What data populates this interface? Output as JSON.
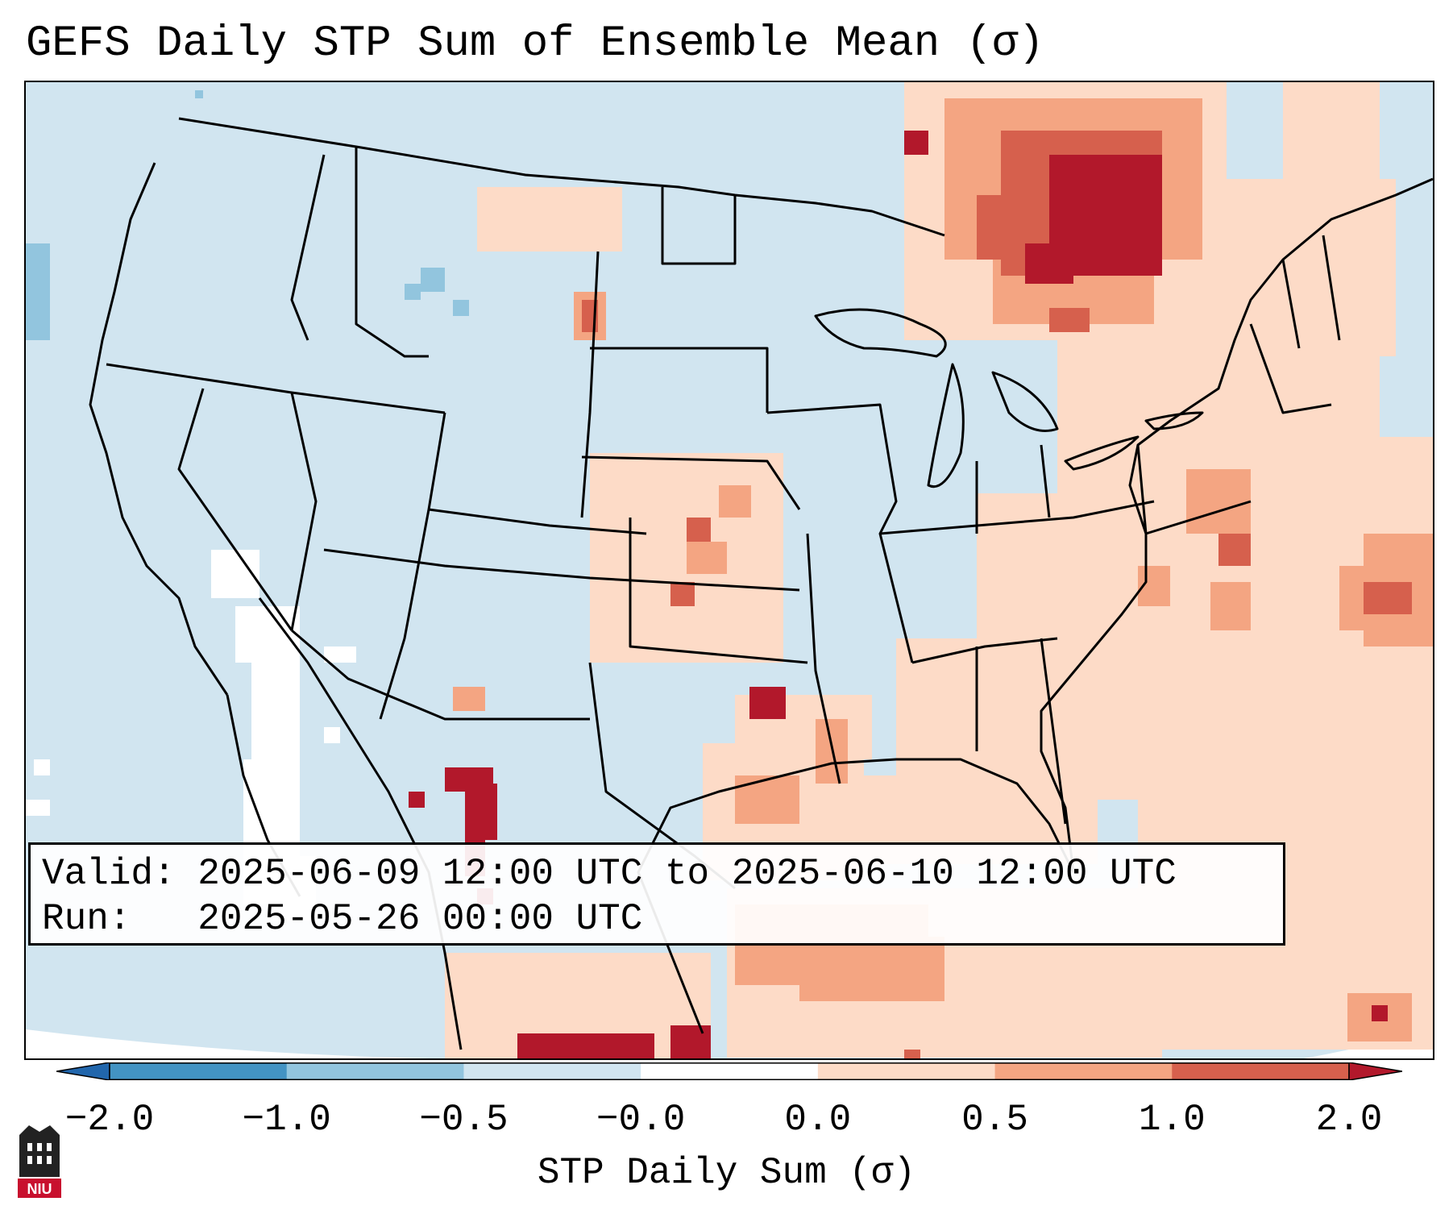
{
  "title": "GEFS Daily STP Sum of Ensemble Mean (σ)",
  "info": {
    "valid_label": "Valid:",
    "valid_value": "2025-06-09 12:00 UTC to 2025-06-10 12:00 UTC",
    "run_label": "Run:",
    "run_value": "2025-05-26 00:00 UTC"
  },
  "colorbar": {
    "label": "STP Daily Sum (σ)",
    "ticks": [
      "−2.0",
      "−1.0",
      "−0.5",
      "−0.0",
      "0.0",
      "0.5",
      "1.0",
      "2.0"
    ],
    "bins": [
      {
        "range": "< -2.0",
        "color": "#2166ac"
      },
      {
        "range": "-2.0 to -1.0",
        "color": "#4393c3"
      },
      {
        "range": "-1.0 to -0.5",
        "color": "#92c5de"
      },
      {
        "range": "-0.5 to -0.0",
        "color": "#d1e5f0"
      },
      {
        "range": "-0.0 to 0.0",
        "color": "#ffffff"
      },
      {
        "range": "0.0 to 0.5",
        "color": "#fddbc7"
      },
      {
        "range": "0.5 to 1.0",
        "color": "#f4a582"
      },
      {
        "range": "1.0 to 2.0",
        "color": "#d6604d"
      },
      {
        "range": "> 2.0",
        "color": "#b2182b"
      }
    ]
  },
  "logo": {
    "text": "NIU",
    "color": "#c8102e"
  }
}
